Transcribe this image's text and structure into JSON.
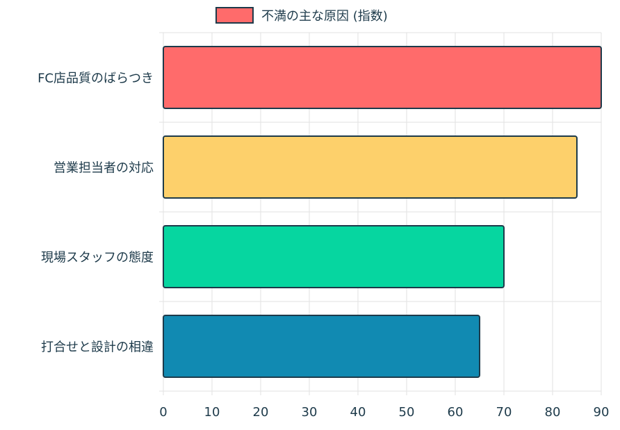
{
  "chart_data": {
    "type": "bar",
    "orientation": "horizontal",
    "categories": [
      "FC店品質のばらつき",
      "営業担当者の対応",
      "現場スタッフの態度",
      "打合せと設計の相違"
    ],
    "series": [
      {
        "name": "不満の主な原因 (指数)",
        "values": [
          90,
          85,
          70,
          65
        ]
      }
    ],
    "bar_colors": [
      "#ff6b6b",
      "#fdd06b",
      "#06d6a0",
      "#118ab2"
    ],
    "legend_swatch_color": "#ff6b6b",
    "border_color": "#1d3a4a",
    "xlim": [
      0,
      90
    ],
    "xticks": [
      0,
      10,
      20,
      30,
      40,
      50,
      60,
      70,
      80,
      90
    ],
    "grid": true,
    "legend_position": "top"
  }
}
